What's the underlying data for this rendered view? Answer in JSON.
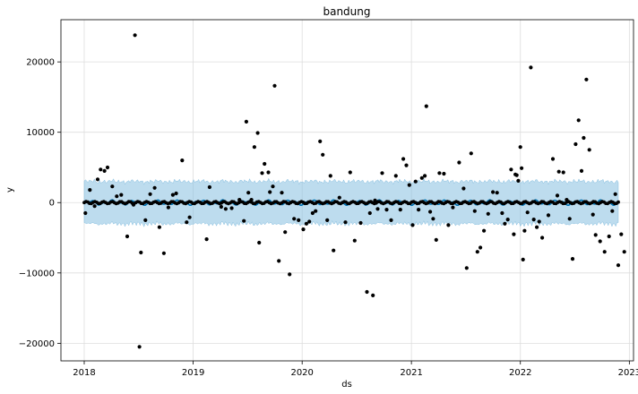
{
  "chart_data": {
    "type": "scatter",
    "title": "bandung",
    "xlabel": "ds",
    "ylabel": "y",
    "x_ticks": [
      "2018",
      "2019",
      "2020",
      "2021",
      "2022",
      "2023"
    ],
    "y_ticks": [
      -20000,
      -10000,
      0,
      10000,
      20000
    ],
    "y_tick_labels": [
      "−20000",
      "−10000",
      "0",
      "10000",
      "20000"
    ],
    "xlim": [
      "2017-10-15",
      "2023-01-15"
    ],
    "ylim": [
      -22500,
      26000
    ],
    "grid": true,
    "colors": {
      "points": "#000000",
      "forecast": "#0072B2",
      "band": "#87BFE0",
      "grid": "#dddddd",
      "frame": "#000000"
    },
    "series": [
      {
        "kind": "observed",
        "points": [
          {
            "x": "2018-01-05",
            "y": -1500
          },
          {
            "x": "2018-01-20",
            "y": 1800
          },
          {
            "x": "2018-02-05",
            "y": -500
          },
          {
            "x": "2018-02-15",
            "y": 3300
          },
          {
            "x": "2018-02-25",
            "y": 4700
          },
          {
            "x": "2018-03-10",
            "y": 4500
          },
          {
            "x": "2018-03-20",
            "y": 5000
          },
          {
            "x": "2018-04-05",
            "y": 2300
          },
          {
            "x": "2018-04-20",
            "y": 900
          },
          {
            "x": "2018-05-05",
            "y": 1100
          },
          {
            "x": "2018-05-25",
            "y": -4800
          },
          {
            "x": "2018-06-15",
            "y": -300
          },
          {
            "x": "2018-06-20",
            "y": 23800
          },
          {
            "x": "2018-07-05",
            "y": -20500
          },
          {
            "x": "2018-07-10",
            "y": -7100
          },
          {
            "x": "2018-07-25",
            "y": -2500
          },
          {
            "x": "2018-08-10",
            "y": 1200
          },
          {
            "x": "2018-08-25",
            "y": 2100
          },
          {
            "x": "2018-09-10",
            "y": -3500
          },
          {
            "x": "2018-09-25",
            "y": -7200
          },
          {
            "x": "2018-10-10",
            "y": -700
          },
          {
            "x": "2018-10-25",
            "y": 1100
          },
          {
            "x": "2018-11-05",
            "y": 1300
          },
          {
            "x": "2018-11-25",
            "y": 6000
          },
          {
            "x": "2018-12-10",
            "y": -2800
          },
          {
            "x": "2018-12-20",
            "y": -2100
          },
          {
            "x": "2019-02-15",
            "y": -5200
          },
          {
            "x": "2019-02-25",
            "y": 2200
          },
          {
            "x": "2019-04-05",
            "y": -600
          },
          {
            "x": "2019-04-20",
            "y": -900
          },
          {
            "x": "2019-05-10",
            "y": -800
          },
          {
            "x": "2019-06-05",
            "y": 400
          },
          {
            "x": "2019-06-20",
            "y": -2600
          },
          {
            "x": "2019-06-28",
            "y": 11500
          },
          {
            "x": "2019-07-05",
            "y": 1400
          },
          {
            "x": "2019-07-15",
            "y": 400
          },
          {
            "x": "2019-07-25",
            "y": 7900
          },
          {
            "x": "2019-08-05",
            "y": 9900
          },
          {
            "x": "2019-08-10",
            "y": -5700
          },
          {
            "x": "2019-08-20",
            "y": 4200
          },
          {
            "x": "2019-08-28",
            "y": 5500
          },
          {
            "x": "2019-09-10",
            "y": 4300
          },
          {
            "x": "2019-09-15",
            "y": 1500
          },
          {
            "x": "2019-09-25",
            "y": 2300
          },
          {
            "x": "2019-10-01",
            "y": 16600
          },
          {
            "x": "2019-10-15",
            "y": -8300
          },
          {
            "x": "2019-10-25",
            "y": 1400
          },
          {
            "x": "2019-11-05",
            "y": -4200
          },
          {
            "x": "2019-11-20",
            "y": -10200
          },
          {
            "x": "2019-12-05",
            "y": -2300
          },
          {
            "x": "2019-12-20",
            "y": -2500
          },
          {
            "x": "2020-01-05",
            "y": -3800
          },
          {
            "x": "2020-01-15",
            "y": -3000
          },
          {
            "x": "2020-01-25",
            "y": -2700
          },
          {
            "x": "2020-02-05",
            "y": -1500
          },
          {
            "x": "2020-02-15",
            "y": -1200
          },
          {
            "x": "2020-03-01",
            "y": 8700
          },
          {
            "x": "2020-03-10",
            "y": 6800
          },
          {
            "x": "2020-03-25",
            "y": -2500
          },
          {
            "x": "2020-04-05",
            "y": 3800
          },
          {
            "x": "2020-04-15",
            "y": -6800
          },
          {
            "x": "2020-05-05",
            "y": 700
          },
          {
            "x": "2020-05-25",
            "y": -2800
          },
          {
            "x": "2020-06-10",
            "y": 4300
          },
          {
            "x": "2020-06-25",
            "y": -5400
          },
          {
            "x": "2020-07-15",
            "y": -2900
          },
          {
            "x": "2020-08-05",
            "y": -12700
          },
          {
            "x": "2020-08-15",
            "y": -1500
          },
          {
            "x": "2020-08-25",
            "y": -13200
          },
          {
            "x": "2020-09-01",
            "y": 300
          },
          {
            "x": "2020-09-10",
            "y": -900
          },
          {
            "x": "2020-09-25",
            "y": 4200
          },
          {
            "x": "2020-10-10",
            "y": -1000
          },
          {
            "x": "2020-10-25",
            "y": -2500
          },
          {
            "x": "2020-11-10",
            "y": 3800
          },
          {
            "x": "2020-11-25",
            "y": -1000
          },
          {
            "x": "2020-12-05",
            "y": 6200
          },
          {
            "x": "2020-12-15",
            "y": 5300
          },
          {
            "x": "2020-12-25",
            "y": 2500
          },
          {
            "x": "2021-01-05",
            "y": -3200
          },
          {
            "x": "2021-01-15",
            "y": 3000
          },
          {
            "x": "2021-01-25",
            "y": -1000
          },
          {
            "x": "2021-02-05",
            "y": 3500
          },
          {
            "x": "2021-02-15",
            "y": 3800
          },
          {
            "x": "2021-02-20",
            "y": 13700
          },
          {
            "x": "2021-03-05",
            "y": -1300
          },
          {
            "x": "2021-03-15",
            "y": -2300
          },
          {
            "x": "2021-03-25",
            "y": -5300
          },
          {
            "x": "2021-04-05",
            "y": 4200
          },
          {
            "x": "2021-04-20",
            "y": 4100
          },
          {
            "x": "2021-05-05",
            "y": -3200
          },
          {
            "x": "2021-05-20",
            "y": -700
          },
          {
            "x": "2021-06-10",
            "y": 5700
          },
          {
            "x": "2021-06-25",
            "y": 2000
          },
          {
            "x": "2021-07-05",
            "y": -9300
          },
          {
            "x": "2021-07-20",
            "y": 7000
          },
          {
            "x": "2021-08-01",
            "y": -1200
          },
          {
            "x": "2021-08-10",
            "y": -7000
          },
          {
            "x": "2021-08-20",
            "y": -6400
          },
          {
            "x": "2021-09-01",
            "y": -4000
          },
          {
            "x": "2021-09-15",
            "y": -1600
          },
          {
            "x": "2021-10-01",
            "y": 1500
          },
          {
            "x": "2021-10-15",
            "y": 1400
          },
          {
            "x": "2021-11-01",
            "y": -1500
          },
          {
            "x": "2021-11-10",
            "y": -3000
          },
          {
            "x": "2021-11-20",
            "y": -2400
          },
          {
            "x": "2021-12-01",
            "y": 4700
          },
          {
            "x": "2021-12-10",
            "y": -4500
          },
          {
            "x": "2021-12-15",
            "y": 4000
          },
          {
            "x": "2021-12-20",
            "y": 3900
          },
          {
            "x": "2021-12-25",
            "y": 3100
          },
          {
            "x": "2022-01-01",
            "y": 7900
          },
          {
            "x": "2022-01-05",
            "y": 4900
          },
          {
            "x": "2022-01-10",
            "y": -8100
          },
          {
            "x": "2022-01-15",
            "y": -4000
          },
          {
            "x": "2022-01-25",
            "y": -1400
          },
          {
            "x": "2022-02-05",
            "y": 19200
          },
          {
            "x": "2022-02-15",
            "y": -2400
          },
          {
            "x": "2022-02-25",
            "y": -3500
          },
          {
            "x": "2022-03-05",
            "y": -2700
          },
          {
            "x": "2022-03-15",
            "y": -5000
          },
          {
            "x": "2022-04-05",
            "y": -1800
          },
          {
            "x": "2022-04-20",
            "y": 6200
          },
          {
            "x": "2022-05-05",
            "y": 1000
          },
          {
            "x": "2022-05-10",
            "y": 4400
          },
          {
            "x": "2022-05-25",
            "y": 4300
          },
          {
            "x": "2022-06-05",
            "y": 400
          },
          {
            "x": "2022-06-15",
            "y": -2300
          },
          {
            "x": "2022-06-25",
            "y": -8000
          },
          {
            "x": "2022-07-05",
            "y": 8300
          },
          {
            "x": "2022-07-15",
            "y": 11700
          },
          {
            "x": "2022-07-25",
            "y": 4500
          },
          {
            "x": "2022-08-01",
            "y": 9200
          },
          {
            "x": "2022-08-10",
            "y": 17500
          },
          {
            "x": "2022-08-20",
            "y": 7500
          },
          {
            "x": "2022-09-01",
            "y": -1700
          },
          {
            "x": "2022-09-10",
            "y": -4600
          },
          {
            "x": "2022-09-25",
            "y": -5500
          },
          {
            "x": "2022-10-10",
            "y": -7000
          },
          {
            "x": "2022-10-25",
            "y": -4800
          },
          {
            "x": "2022-11-05",
            "y": -1200
          },
          {
            "x": "2022-11-15",
            "y": 1200
          },
          {
            "x": "2022-11-25",
            "y": -8900
          },
          {
            "x": "2022-12-05",
            "y": -4500
          },
          {
            "x": "2022-12-15",
            "y": -7000
          }
        ]
      }
    ],
    "forecast": {
      "start": "2018-01-01",
      "end": "2022-11-25",
      "yhat_mean": 0,
      "yhat_amplitude": 400,
      "band_upper_mean": 3000,
      "band_lower_mean": -3000
    }
  }
}
